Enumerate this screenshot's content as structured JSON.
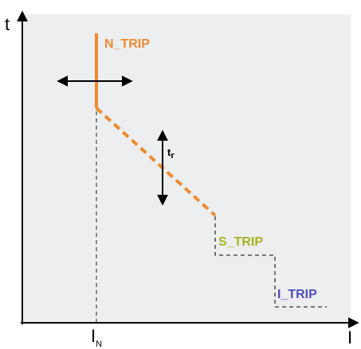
{
  "axes": {
    "y_label": "t",
    "x_label": "I"
  },
  "labels": {
    "in_main": "I",
    "in_sub": "N",
    "tr_main": "t",
    "tr_sub": "r",
    "n_trip": "N_TRIP",
    "s_trip": "S_TRIP",
    "i_trip": "I_TRIP"
  },
  "colors": {
    "background": "#eceef0",
    "curve": "#ef8a2e",
    "n_trip": "#ef8a2e",
    "s_trip": "#a8b41e",
    "i_trip": "#4e4fb8",
    "guide": "#444444",
    "axis": "#000000"
  },
  "icons": {
    "horizontal_adjust": "double-arrow-horizontal-icon",
    "vertical_adjust": "double-arrow-vertical-icon"
  }
}
